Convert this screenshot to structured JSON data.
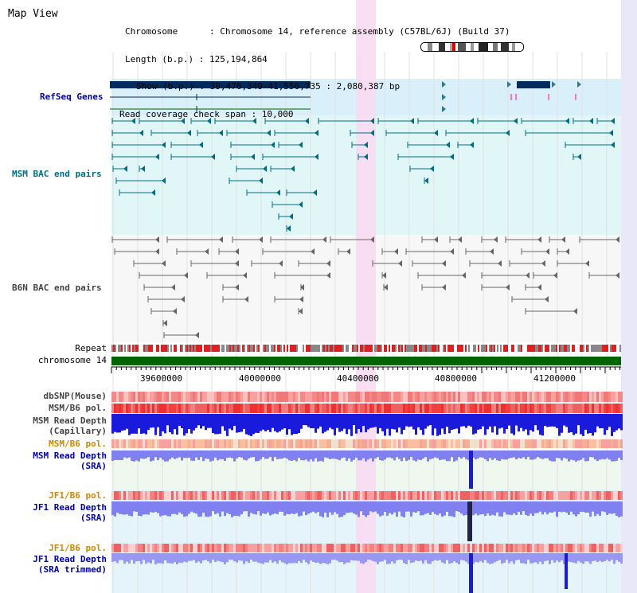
{
  "view": {
    "title": "Map View"
  },
  "info": {
    "lines": [
      "Chromosome      : Chromosome 14, reference assembly (C57BL/6J) (Build 37)",
      "Length (b.p.) : 125,194,864",
      "Show (b.p.) : 39,476,349-41,556,735 : 2,080,387 bp",
      "Read coverage check span : 10,000"
    ]
  },
  "tracks": {
    "refseq": "RefSeq Genes",
    "msm_bac": "MSM BAC end pairs",
    "b6n_bac": "B6N BAC end pairs",
    "repeat": "Repeat",
    "chromosome": "chromosome 14",
    "dbsnp": "dbSNP(Mouse)",
    "msm_b6_pol": "MSM/B6 pol.",
    "msm_depth_cap_1": "MSM Read Depth",
    "msm_depth_cap_2": "(Capillary)",
    "msm_b6_pol2": "MSM/B6 pol.",
    "msm_depth_sra_1": "MSM Read Depth",
    "msm_depth_sra_2": "(SRA)",
    "jf1_b6_pol": "JF1/B6 pol.",
    "jf1_depth_sra_1": "JF1 Read Depth",
    "jf1_depth_sra_2": "(SRA)",
    "jf1_b6_pol2": "JF1/B6 pol.",
    "jf1_depth_trim_1": "JF1 Read Depth",
    "jf1_depth_trim_2": "(SRA trimmed)"
  },
  "axis": {
    "ticks": [
      "39600000",
      "40000000",
      "40400000",
      "40800000",
      "41200000"
    ]
  },
  "colors": {
    "refseq_bg": "#d9effa",
    "msm_bg": "#e1f7f7",
    "b6n_bg": "#f7f7f7",
    "highlight": "#f9d9f2",
    "gene_navy": "#002b5c",
    "msm_teal": "#006d86",
    "b6n_gray": "#666666",
    "chrom_green": "#006400",
    "depth_blue": "#1a1adc",
    "sra_blue": "#8080f0",
    "pol_red": "#f03030",
    "label_blue": "#0000aa",
    "label_teal": "#006d86",
    "label_orange": "#cc8800",
    "label_gray": "#333333"
  }
}
